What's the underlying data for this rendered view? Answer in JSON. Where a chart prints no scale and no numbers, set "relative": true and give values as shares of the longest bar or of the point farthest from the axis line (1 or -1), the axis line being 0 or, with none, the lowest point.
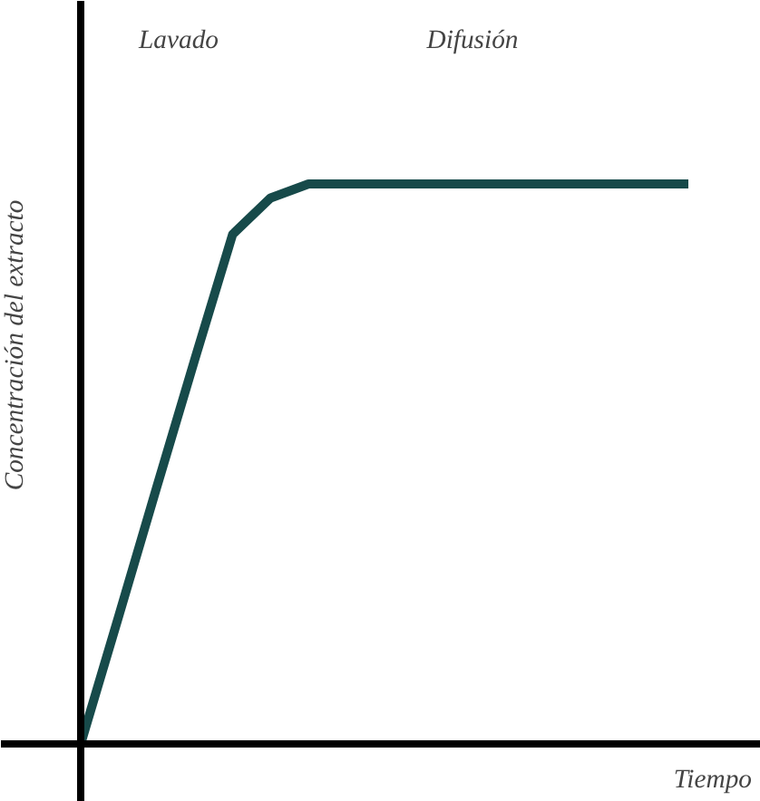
{
  "chart_data": {
    "type": "line",
    "relative": true,
    "xlabel": "Tiempo",
    "ylabel": "Concentración del extracto",
    "annotations": [
      "Lavado",
      "Difusión"
    ],
    "categories": [
      null,
      null,
      null,
      null,
      null,
      null,
      null,
      null,
      null,
      null,
      null,
      null,
      null,
      null,
      null,
      null,
      null
    ],
    "series": [
      {
        "color": "#174a4a",
        "values": [
          0,
          0.228,
          0.458,
          0.686,
          0.91,
          0.975,
          1,
          1,
          1,
          1,
          1,
          1,
          1,
          1,
          1,
          1,
          1
        ]
      }
    ],
    "marker": "none",
    "line_style": "solid"
  }
}
